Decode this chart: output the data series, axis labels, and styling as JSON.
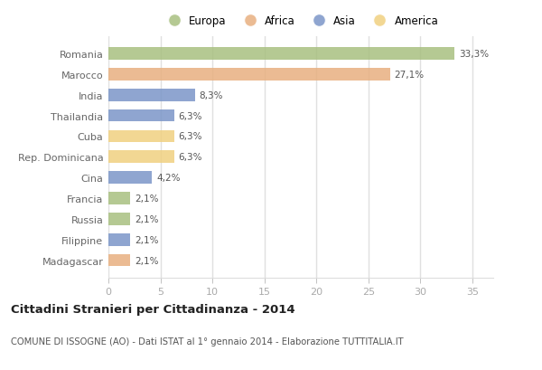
{
  "categories": [
    "Romania",
    "Marocco",
    "India",
    "Thailandia",
    "Cuba",
    "Rep. Dominicana",
    "Cina",
    "Francia",
    "Russia",
    "Filippine",
    "Madagascar"
  ],
  "values": [
    33.3,
    27.1,
    8.3,
    6.3,
    6.3,
    6.3,
    4.2,
    2.1,
    2.1,
    2.1,
    2.1
  ],
  "labels": [
    "33,3%",
    "27,1%",
    "8,3%",
    "6,3%",
    "6,3%",
    "6,3%",
    "4,2%",
    "2,1%",
    "2,1%",
    "2,1%",
    "2,1%"
  ],
  "colors": [
    "#a8c080",
    "#e8b080",
    "#7b96c8",
    "#7b96c8",
    "#f0d080",
    "#f0d080",
    "#7b96c8",
    "#a8c080",
    "#a8c080",
    "#7b96c8",
    "#e8b080"
  ],
  "legend": [
    {
      "label": "Europa",
      "color": "#a8c080"
    },
    {
      "label": "Africa",
      "color": "#e8b080"
    },
    {
      "label": "Asia",
      "color": "#7b96c8"
    },
    {
      "label": "America",
      "color": "#f0d080"
    }
  ],
  "xlim": [
    0,
    37
  ],
  "xticks": [
    0,
    5,
    10,
    15,
    20,
    25,
    30,
    35
  ],
  "title": "Cittadini Stranieri per Cittadinanza - 2014",
  "subtitle": "COMUNE DI ISSOGNE (AO) - Dati ISTAT al 1° gennaio 2014 - Elaborazione TUTTITALIA.IT",
  "bg_color": "#ffffff",
  "plot_bg_color": "#ffffff",
  "grid_color": "#e0e0e0",
  "bar_height": 0.6,
  "label_color": "#666666",
  "value_color": "#555555"
}
